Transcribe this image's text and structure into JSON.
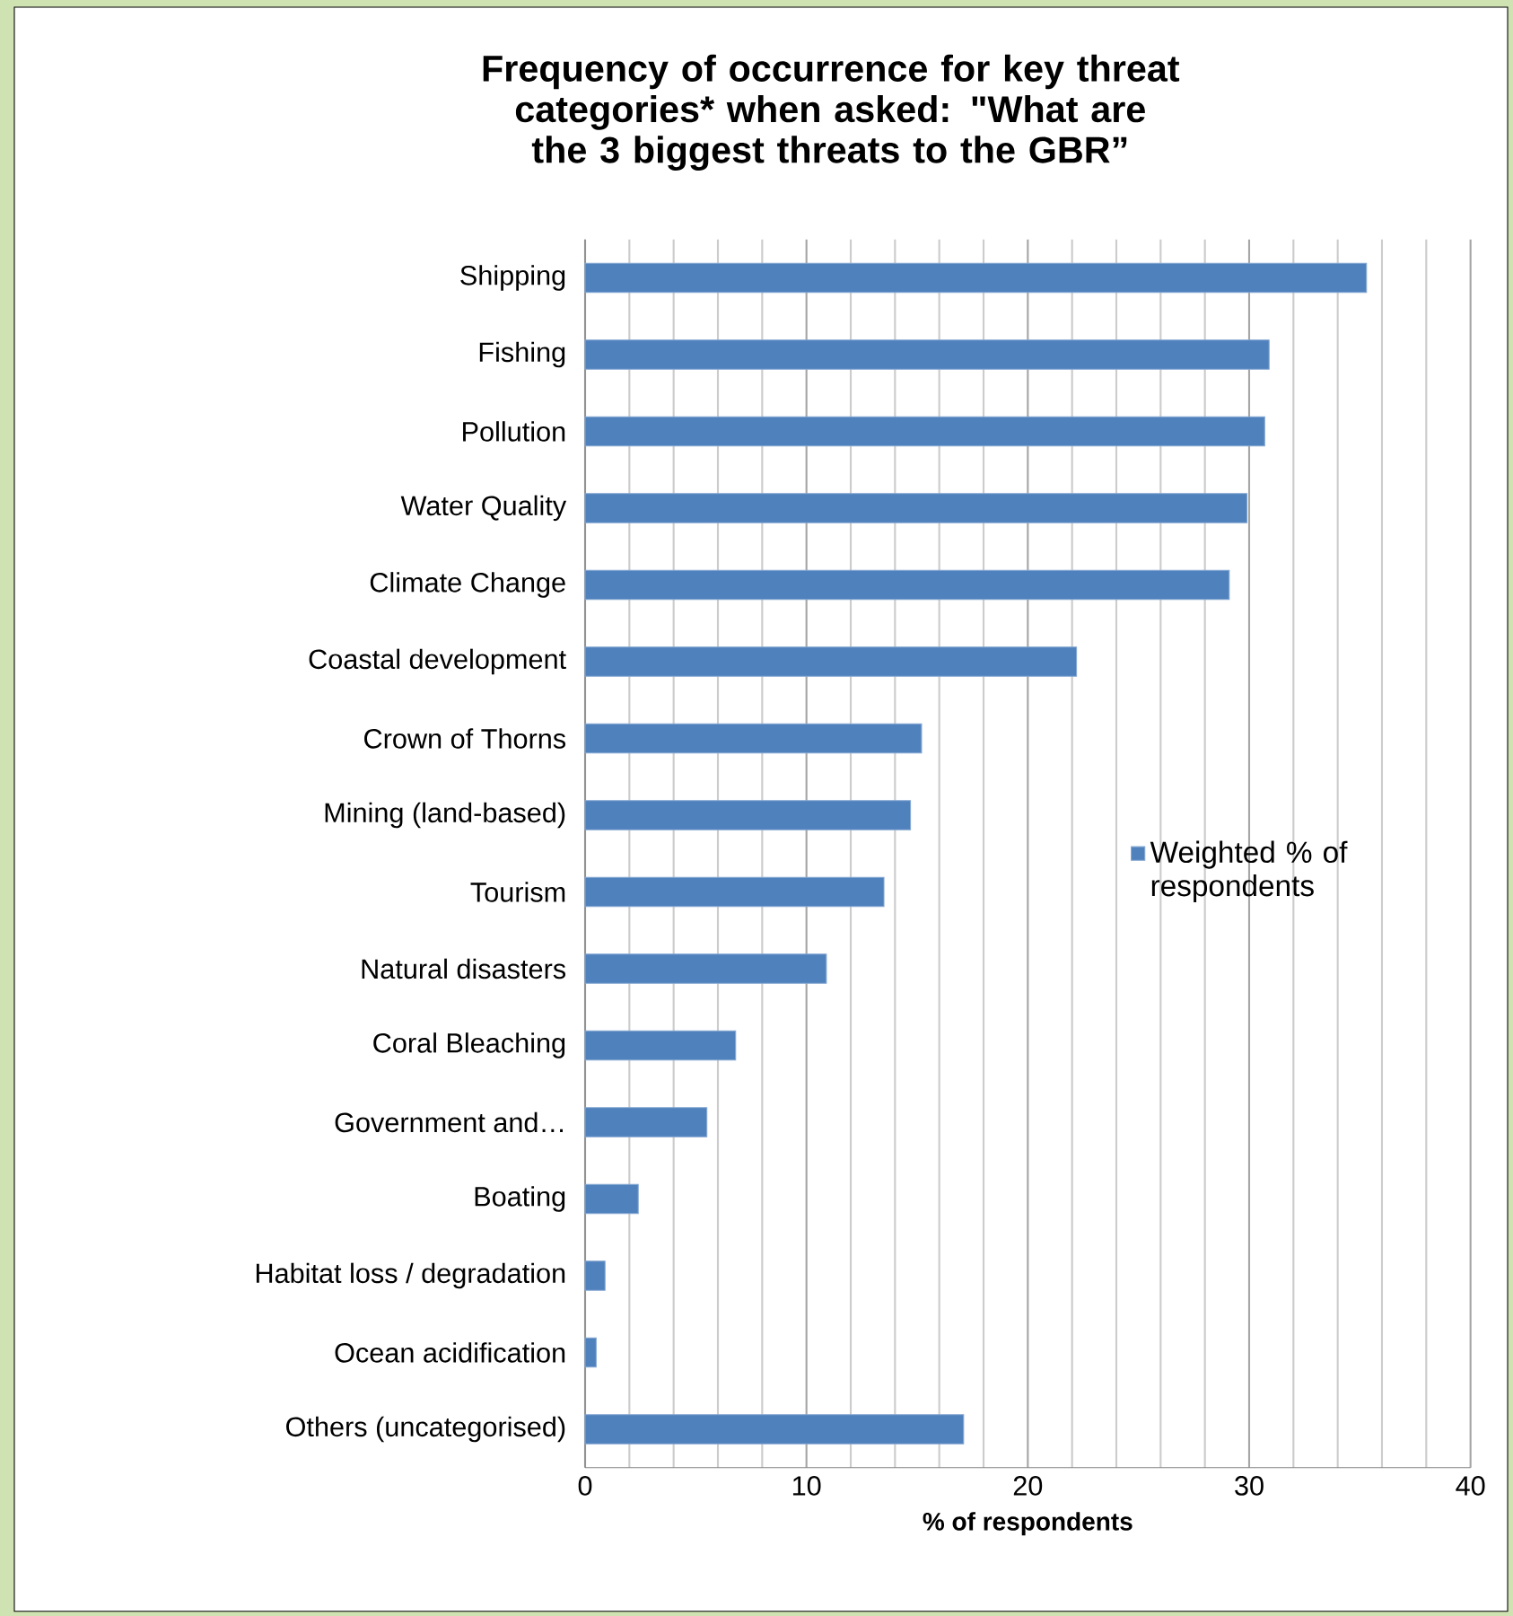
{
  "chart_data": {
    "type": "bar",
    "orientation": "horizontal",
    "title": "Frequency of occurrence for key threat categories* when asked: \"What are the 3 biggest threats to the GBR”",
    "xlabel": "% of respondents",
    "categories": [
      "Shipping",
      "Fishing",
      "Pollution",
      "Water Quality",
      "Climate Change",
      "Coastal development",
      "Crown of Thorns",
      "Mining (land-based)",
      "Tourism",
      "Natural disasters",
      "Coral Bleaching",
      "Government and…",
      "Boating",
      "Habitat loss / degradation",
      "Ocean acidification",
      "Others (uncategorised)"
    ],
    "series": [
      {
        "name": "Weighted % of respondents",
        "color": "#4f81bd",
        "values": [
          35.3,
          30.9,
          30.7,
          29.9,
          29.1,
          22.2,
          15.2,
          14.7,
          13.5,
          10.9,
          6.8,
          5.5,
          2.4,
          0.9,
          0.5,
          17.1
        ]
      }
    ],
    "xlim": [
      0,
      40
    ],
    "xticks": [
      0,
      10,
      20,
      30,
      40
    ],
    "grid": "x",
    "legend": "right"
  }
}
